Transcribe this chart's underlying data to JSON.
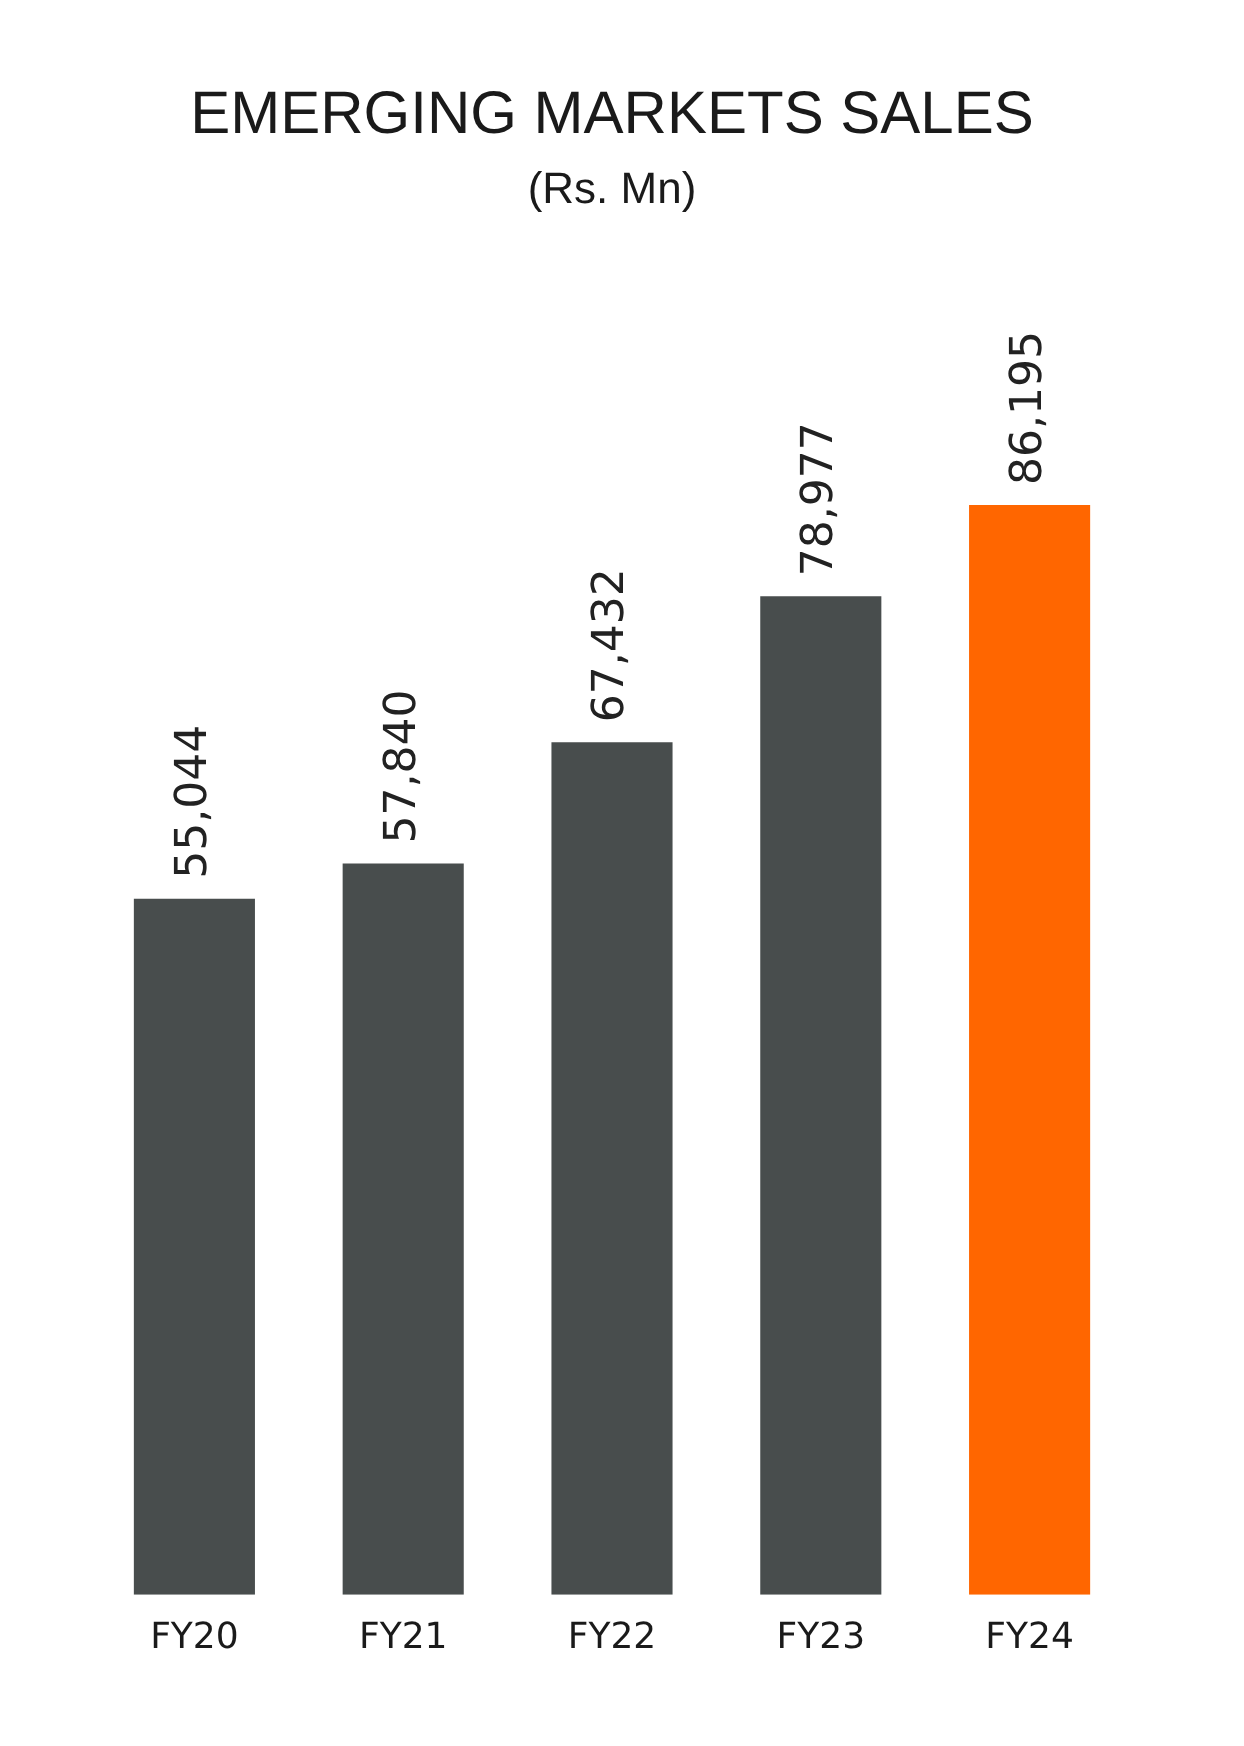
{
  "chart_data": {
    "type": "bar",
    "title": "EMERGING MARKETS SALES",
    "subtitle": "(Rs. Mn)",
    "categories": [
      "FY20",
      "FY21",
      "FY22",
      "FY23",
      "FY24"
    ],
    "values": [
      55044,
      57840,
      67432,
      78977,
      86195
    ],
    "colors": [
      "#484d4d",
      "#484d4d",
      "#484d4d",
      "#484d4d",
      "#ff6600"
    ],
    "value_labels": [
      "55,044",
      "57,840",
      "67,432",
      "78,977",
      "86,195"
    ]
  }
}
